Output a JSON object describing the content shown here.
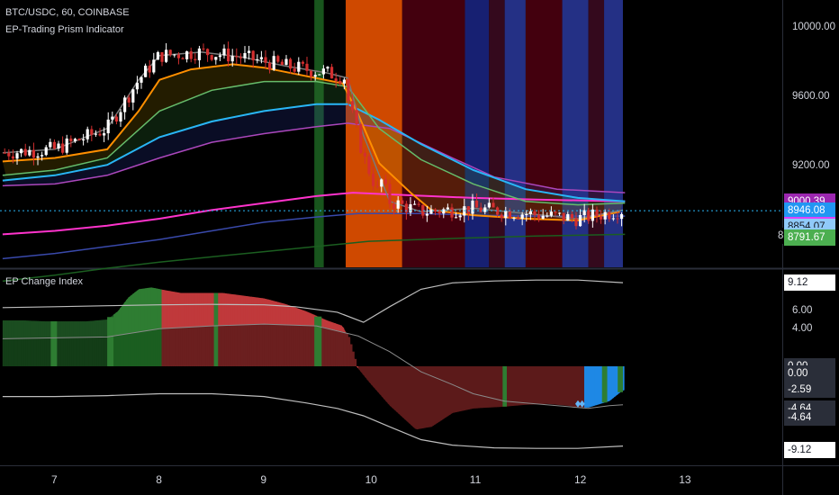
{
  "header": {
    "symbol_line": "BTC/USDC, 60, COINBASE",
    "indicator_name": "EP-Trading Prism Indicator"
  },
  "lower_pane": {
    "title": "EP Change Index"
  },
  "chart_data": [
    {
      "type": "candlestick",
      "title": "BTC/USDC, 60, COINBASE",
      "subtitle": "EP-Trading Prism Indicator",
      "y_ticks": [
        "10000.00",
        "9600.00",
        "9200.00"
      ],
      "y_range": [
        8620,
        10160
      ],
      "x_ticks": [
        "7",
        "8",
        "9",
        "10",
        "11",
        "12",
        "13"
      ],
      "x_range_days": [
        6.5,
        13.8
      ],
      "price_tags": [
        {
          "label": "9000.39",
          "value": 9000.39,
          "bg": "#9c27b0",
          "fg": "#ffffff"
        },
        {
          "label": "8946.08",
          "value": 8946.08,
          "bg": "#2196f3",
          "fg": "#ffffff"
        },
        {
          "label": "8864.38",
          "value": 8864.38,
          "bg": "#ff33cc",
          "fg": "#ffffff"
        },
        {
          "label": "8863.67",
          "value": 8863.67,
          "bg": "#e040fb",
          "fg": "#ffffff"
        },
        {
          "label": "8854.07",
          "value": 8854.07,
          "bg": "#90caf9",
          "fg": "#131722"
        },
        {
          "label": "39:25",
          "value": 8800,
          "bg": "#90caf9",
          "fg": "#131722",
          "prefix": "8"
        },
        {
          "label": "8791.67",
          "value": 8791.67,
          "bg": "#4caf50",
          "fg": "#ffffff"
        }
      ],
      "last_price": 8946.08,
      "colors": {
        "up": "#ffffff",
        "down": "#d32f2f",
        "ema_fast": "#7a7a7a",
        "ema_orange": "#ff8f00",
        "ema_green": "#66bb6a",
        "ema_blue": "#29b6f6",
        "ema_purple": "#ab47bc",
        "ema_magenta": "#ff33cc",
        "ema_navy": "#3949ab",
        "ema_darkgreen": "#1b5e20"
      },
      "regime_bands": [
        {
          "from": 9.48,
          "to": 9.57,
          "color": "#1b5e20"
        },
        {
          "from": 9.78,
          "to": 10.32,
          "color": "#e65100"
        },
        {
          "from": 10.32,
          "to": 10.92,
          "color": "#4a0010"
        },
        {
          "from": 10.92,
          "to": 11.15,
          "color": "#1a237e"
        },
        {
          "from": 11.15,
          "to": 11.3,
          "color": "#3a0a20"
        },
        {
          "from": 11.3,
          "to": 11.5,
          "color": "#283593"
        },
        {
          "from": 11.5,
          "to": 11.85,
          "color": "#4a0010"
        },
        {
          "from": 11.85,
          "to": 12.1,
          "color": "#283593"
        },
        {
          "from": 12.1,
          "to": 12.25,
          "color": "#3a0a20"
        },
        {
          "from": 12.25,
          "to": 12.43,
          "color": "#283593"
        }
      ],
      "ema_lines": {
        "ema_orange": [
          [
            6.5,
            9230
          ],
          [
            7.0,
            9250
          ],
          [
            7.5,
            9300
          ],
          [
            7.8,
            9520
          ],
          [
            8.0,
            9700
          ],
          [
            8.3,
            9760
          ],
          [
            8.7,
            9790
          ],
          [
            9.0,
            9770
          ],
          [
            9.5,
            9710
          ],
          [
            9.75,
            9680
          ],
          [
            9.9,
            9500
          ],
          [
            10.1,
            9220
          ],
          [
            10.4,
            9050
          ],
          [
            10.6,
            8950
          ],
          [
            11.0,
            8920
          ],
          [
            11.5,
            8900
          ],
          [
            12.0,
            8890
          ],
          [
            12.4,
            8940
          ]
        ],
        "ema_green": [
          [
            6.5,
            9150
          ],
          [
            7.0,
            9180
          ],
          [
            7.5,
            9250
          ],
          [
            8.0,
            9520
          ],
          [
            8.5,
            9640
          ],
          [
            9.0,
            9690
          ],
          [
            9.5,
            9690
          ],
          [
            9.8,
            9660
          ],
          [
            10.1,
            9420
          ],
          [
            10.5,
            9240
          ],
          [
            11.0,
            9100
          ],
          [
            11.5,
            9000
          ],
          [
            12.0,
            8980
          ],
          [
            12.45,
            8990
          ]
        ],
        "ema_blue": [
          [
            6.5,
            9120
          ],
          [
            7.0,
            9150
          ],
          [
            7.5,
            9210
          ],
          [
            8.0,
            9370
          ],
          [
            8.5,
            9460
          ],
          [
            9.0,
            9520
          ],
          [
            9.5,
            9560
          ],
          [
            9.8,
            9560
          ],
          [
            10.1,
            9470
          ],
          [
            10.5,
            9330
          ],
          [
            11.0,
            9180
          ],
          [
            11.5,
            9070
          ],
          [
            12.0,
            9020
          ],
          [
            12.45,
            9000
          ]
        ],
        "ema_purple": [
          [
            6.5,
            9090
          ],
          [
            7.0,
            9100
          ],
          [
            7.5,
            9150
          ],
          [
            8.0,
            9250
          ],
          [
            8.5,
            9340
          ],
          [
            9.0,
            9390
          ],
          [
            9.5,
            9430
          ],
          [
            9.8,
            9450
          ],
          [
            10.2,
            9420
          ],
          [
            10.8,
            9250
          ],
          [
            11.2,
            9140
          ],
          [
            11.8,
            9070
          ],
          [
            12.45,
            9050
          ]
        ],
        "ema_magenta": [
          [
            6.5,
            8810
          ],
          [
            7.0,
            8830
          ],
          [
            7.5,
            8860
          ],
          [
            8.0,
            8900
          ],
          [
            8.5,
            8950
          ],
          [
            9.0,
            8990
          ],
          [
            9.5,
            9030
          ],
          [
            9.85,
            9050
          ],
          [
            10.2,
            9040
          ],
          [
            11.0,
            9020
          ],
          [
            11.6,
            9010
          ],
          [
            12.45,
            9000
          ]
        ],
        "ema_navy": [
          [
            6.5,
            8670
          ],
          [
            7.0,
            8700
          ],
          [
            7.5,
            8740
          ],
          [
            8.0,
            8780
          ],
          [
            8.5,
            8830
          ],
          [
            9.0,
            8880
          ],
          [
            9.5,
            8910
          ],
          [
            9.9,
            8930
          ],
          [
            10.5,
            8930
          ],
          [
            11.0,
            8920
          ],
          [
            11.6,
            8915
          ],
          [
            12.45,
            8915
          ]
        ],
        "ema_darkgreen": [
          [
            6.5,
            8540
          ],
          [
            7.0,
            8575
          ],
          [
            7.5,
            8615
          ],
          [
            8.0,
            8650
          ],
          [
            8.5,
            8680
          ],
          [
            9.0,
            8710
          ],
          [
            9.5,
            8740
          ],
          [
            10.0,
            8770
          ],
          [
            10.5,
            8780
          ],
          [
            11.0,
            8790
          ],
          [
            11.6,
            8800
          ],
          [
            12.45,
            8810
          ]
        ],
        "ema_fast": [
          [
            6.5,
            9280
          ],
          [
            7.0,
            9300
          ],
          [
            7.5,
            9420
          ],
          [
            7.8,
            9700
          ],
          [
            8.0,
            9840
          ],
          [
            8.4,
            9860
          ],
          [
            8.8,
            9830
          ],
          [
            9.2,
            9780
          ],
          [
            9.6,
            9740
          ],
          [
            9.8,
            9710
          ],
          [
            9.95,
            9380
          ],
          [
            10.2,
            9000
          ],
          [
            10.5,
            8940
          ],
          [
            11.0,
            8960
          ],
          [
            11.5,
            8930
          ],
          [
            12.0,
            8900
          ],
          [
            12.43,
            8950
          ]
        ]
      }
    },
    {
      "type": "area",
      "title": "EP Change Index",
      "y_ticks": [
        "6.00",
        "4.00"
      ],
      "value_tags": [
        {
          "label": "9.12",
          "value": 9.12,
          "bg": "#ffffff",
          "fg": "#131722"
        },
        {
          "label": "0.00",
          "value": 0.0,
          "bg": "#2a2e39",
          "fg": "#ffffff"
        },
        {
          "label": "0.00",
          "value": -0.8,
          "bg": "#2a2e39",
          "fg": "#ffffff"
        },
        {
          "label": "-2.59",
          "value": -2.59,
          "bg": "#2a2e39",
          "fg": "#ffffff"
        },
        {
          "label": "-4.64",
          "value": -4.64,
          "bg": "#2a2e39",
          "fg": "#ffffff"
        },
        {
          "label": "-4.64",
          "value": -5.6,
          "bg": "#2a2e39",
          "fg": "#ffffff"
        },
        {
          "label": "-9.12",
          "value": -9.12,
          "bg": "#ffffff",
          "fg": "#131722"
        }
      ],
      "y_range": [
        -10.8,
        10.5
      ],
      "index_series": [
        [
          6.5,
          5.0
        ],
        [
          6.7,
          5.0
        ],
        [
          6.9,
          4.9
        ],
        [
          7.1,
          4.9
        ],
        [
          7.3,
          4.9
        ],
        [
          7.5,
          5.1
        ],
        [
          7.6,
          6.0
        ],
        [
          7.7,
          7.5
        ],
        [
          7.8,
          8.4
        ],
        [
          7.92,
          8.6
        ],
        [
          8.05,
          8.3
        ],
        [
          8.2,
          8.0
        ],
        [
          8.4,
          8.0
        ],
        [
          8.6,
          8.0
        ],
        [
          8.8,
          7.7
        ],
        [
          9.0,
          7.4
        ],
        [
          9.2,
          6.8
        ],
        [
          9.4,
          6.0
        ],
        [
          9.6,
          5.0
        ],
        [
          9.75,
          4.4
        ],
        [
          9.8,
          3.2
        ],
        [
          9.88,
          0.0
        ],
        [
          10.0,
          -1.7
        ],
        [
          10.2,
          -4.3
        ],
        [
          10.45,
          -6.9
        ],
        [
          10.6,
          -6.6
        ],
        [
          10.8,
          -5.1
        ],
        [
          11.0,
          -4.6
        ],
        [
          11.3,
          -4.4
        ],
        [
          11.5,
          -4.2
        ],
        [
          11.7,
          -4.1
        ],
        [
          11.9,
          -4.3
        ],
        [
          12.0,
          -4.5
        ],
        [
          12.1,
          -4.5
        ],
        [
          12.3,
          -3.8
        ],
        [
          12.43,
          -2.6
        ]
      ],
      "signal_line": [
        [
          6.5,
          3.0
        ],
        [
          7.0,
          3.1
        ],
        [
          7.5,
          3.2
        ],
        [
          8.0,
          4.1
        ],
        [
          8.5,
          4.4
        ],
        [
          9.0,
          4.6
        ],
        [
          9.5,
          4.4
        ],
        [
          9.9,
          3.3
        ],
        [
          10.2,
          1.6
        ],
        [
          10.5,
          -0.6
        ],
        [
          10.8,
          -2.0
        ],
        [
          11.0,
          -3.0
        ],
        [
          11.3,
          -3.8
        ],
        [
          11.6,
          -4.1
        ],
        [
          11.9,
          -4.4
        ],
        [
          12.1,
          -4.6
        ],
        [
          12.3,
          -4.3
        ],
        [
          12.43,
          -4.2
        ]
      ],
      "upper_band": [
        [
          6.5,
          6.4
        ],
        [
          7.0,
          6.5
        ],
        [
          7.5,
          6.6
        ],
        [
          8.0,
          6.7
        ],
        [
          8.5,
          6.75
        ],
        [
          9.0,
          6.7
        ],
        [
          9.3,
          6.5
        ],
        [
          9.7,
          5.9
        ],
        [
          9.95,
          4.8
        ],
        [
          10.2,
          6.5
        ],
        [
          10.5,
          8.4
        ],
        [
          10.8,
          9.1
        ],
        [
          11.2,
          9.3
        ],
        [
          11.6,
          9.4
        ],
        [
          12.0,
          9.4
        ],
        [
          12.43,
          9.12
        ]
      ],
      "lower_band": [
        [
          6.5,
          -3.3
        ],
        [
          7.0,
          -3.3
        ],
        [
          7.5,
          -3.2
        ],
        [
          8.0,
          -3.0
        ],
        [
          8.5,
          -3.0
        ],
        [
          9.0,
          -3.3
        ],
        [
          9.4,
          -4.0
        ],
        [
          9.7,
          -4.6
        ],
        [
          9.95,
          -5.4
        ],
        [
          10.2,
          -6.6
        ],
        [
          10.5,
          -8.0
        ],
        [
          10.8,
          -8.6
        ],
        [
          11.2,
          -8.9
        ],
        [
          11.6,
          -8.95
        ],
        [
          12.0,
          -8.95
        ],
        [
          12.43,
          -8.7
        ]
      ],
      "colors": {
        "bull_strong": "#2e7d32",
        "bull_weak": "#1b4d20",
        "bear_strong": "#c0393b",
        "bear_weak": "#5c1a1a",
        "blue": "#1e88e5",
        "line": "#bdbdbd"
      }
    }
  ]
}
